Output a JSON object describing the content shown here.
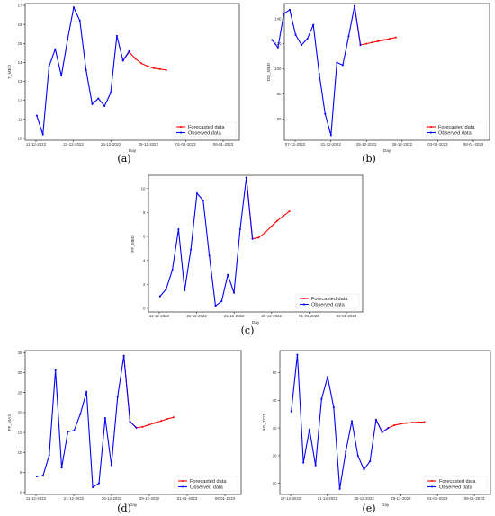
{
  "colors": {
    "observed": "#0000ff",
    "forecast": "#ff0000",
    "frame": "#222222",
    "background": "#ffffff"
  },
  "chart_data": [
    {
      "type": "line",
      "panel": "(a)",
      "xlabel": "Day",
      "ylabel": "T_MED",
      "ylim": [
        9.9,
        17.1
      ],
      "yticks": [
        10,
        11,
        12,
        13,
        14,
        15,
        16,
        17
      ],
      "xlim": [
        "2022-12-10",
        "2023-01-12"
      ],
      "xticks": [
        "11-12-2022",
        "21-12-2022",
        "26-12-2022",
        "29-12-2022",
        "01-01-2023",
        "06-01-2023"
      ],
      "legend_position": "lower-right",
      "series": [
        {
          "name": "Observed data",
          "color": "#0000ff",
          "x": [
            "11-12-2022",
            "12-12-2022",
            "13-12-2022",
            "14-12-2022",
            "15-12-2022",
            "16-12-2022",
            "17-12-2022",
            "18-12-2022",
            "19-12-2022",
            "20-12-2022",
            "21-12-2022",
            "22-12-2022",
            "23-12-2022",
            "24-12-2022",
            "25-12-2022",
            "26-12-2022"
          ],
          "y": [
            11.2,
            10.2,
            13.8,
            14.7,
            13.3,
            15.2,
            16.9,
            16.2,
            13.6,
            11.8,
            12.1,
            11.7,
            12.4,
            15.4,
            14.1,
            14.6
          ]
        },
        {
          "name": "Forecasted data",
          "color": "#ff0000",
          "x": [
            "25-12-2022",
            "26-12-2022",
            "27-12-2022",
            "28-12-2022",
            "29-12-2022",
            "30-12-2022",
            "31-12-2022",
            "01-01-2023"
          ],
          "y": [
            14.1,
            14.55,
            14.2,
            13.95,
            13.8,
            13.7,
            13.65,
            13.6
          ]
        }
      ]
    },
    {
      "type": "line",
      "panel": "(b)",
      "xlabel": "Day",
      "ylabel": "DD_MED",
      "ylim": [
        43,
        152
      ],
      "yticks": [
        60,
        80,
        100,
        120,
        140
      ],
      "xlim": [
        "2022-12-10",
        "2023-01-12"
      ],
      "xticks": [
        "07-12-2022",
        "21-12-2022",
        "25-12-2022",
        "28-12-2022",
        "03-01-2023",
        "08-01-2023"
      ],
      "legend_position": "lower-right",
      "series": [
        {
          "name": "Observed data",
          "color": "#0000ff",
          "x": [
            "07-12-2022",
            "08-12-2022",
            "09-12-2022",
            "10-12-2022",
            "11-12-2022",
            "12-12-2022",
            "13-12-2022",
            "14-12-2022",
            "15-12-2022",
            "16-12-2022",
            "17-12-2022",
            "18-12-2022",
            "19-12-2022",
            "20-12-2022",
            "21-12-2022",
            "22-12-2022"
          ],
          "y": [
            123,
            117,
            144,
            147,
            127,
            119,
            124,
            135,
            96,
            64,
            47,
            105,
            103,
            126,
            150,
            119
          ]
        },
        {
          "name": "Forecasted data",
          "color": "#ff0000",
          "x": [
            "21-12-2022",
            "22-12-2022",
            "23-12-2022",
            "24-12-2022",
            "25-12-2022",
            "26-12-2022",
            "27-12-2022",
            "28-12-2022"
          ],
          "y": [
            150,
            119,
            120,
            121,
            122,
            123,
            124,
            125
          ]
        }
      ]
    },
    {
      "type": "line",
      "panel": "(c)",
      "xlabel": "Day",
      "ylabel": "FF_MED",
      "ylim": [
        -0.3,
        11.1
      ],
      "yticks": [
        0,
        2,
        4,
        6,
        8,
        10
      ],
      "xlim": [
        "2022-12-10",
        "2023-01-12"
      ],
      "xticks": [
        "11-12-2022",
        "21-12-2022",
        "25-12-2022",
        "29-12-2022",
        "01-01-2023",
        "06-01-2023"
      ],
      "legend_position": "lower-right",
      "series": [
        {
          "name": "Observed data",
          "color": "#0000ff",
          "x": [
            "11-12-2022",
            "12-12-2022",
            "13-12-2022",
            "14-12-2022",
            "15-12-2022",
            "16-12-2022",
            "17-12-2022",
            "18-12-2022",
            "19-12-2022",
            "20-12-2022",
            "21-12-2022",
            "22-12-2022",
            "23-12-2022",
            "24-12-2022",
            "25-12-2022",
            "26-12-2022"
          ],
          "y": [
            1.0,
            1.6,
            3.2,
            6.6,
            1.5,
            4.9,
            9.6,
            9.0,
            4.4,
            0.2,
            0.6,
            2.8,
            1.3,
            6.6,
            10.9,
            5.8
          ]
        },
        {
          "name": "Forecasted data",
          "color": "#ff0000",
          "x": [
            "25-12-2022",
            "26-12-2022",
            "27-12-2022",
            "28-12-2022",
            "29-12-2022",
            "30-12-2022",
            "31-12-2022",
            "01-01-2023"
          ],
          "y": [
            10.9,
            5.8,
            5.9,
            6.3,
            6.8,
            7.3,
            7.7,
            8.1
          ]
        }
      ]
    },
    {
      "type": "line",
      "panel": "(d)",
      "xlabel": "Day",
      "ylabel": "FF_MAX",
      "ylim": [
        -0.5,
        35.5
      ],
      "yticks": [
        0,
        5,
        10,
        15,
        20,
        25,
        30,
        35
      ],
      "xlim": [
        "2022-12-10",
        "2023-01-12"
      ],
      "xticks": [
        "11-12-2022",
        "21-12-2022",
        "26-12-2022",
        "29-12-2022",
        "01-01-2023",
        "06-01-2023"
      ],
      "legend_position": "lower-right",
      "series": [
        {
          "name": "Observed data",
          "color": "#0000ff",
          "x": [
            "11-12-2022",
            "12-12-2022",
            "13-12-2022",
            "14-12-2022",
            "15-12-2022",
            "16-12-2022",
            "17-12-2022",
            "18-12-2022",
            "19-12-2022",
            "20-12-2022",
            "21-12-2022",
            "22-12-2022",
            "23-12-2022",
            "24-12-2022",
            "25-12-2022",
            "26-12-2022",
            "27-12-2022"
          ],
          "y": [
            4.0,
            4.2,
            9.3,
            30.6,
            6.2,
            15.2,
            15.5,
            19.6,
            25.2,
            1.3,
            2.3,
            18.6,
            6.8,
            23.9,
            34.2,
            17.7,
            16.2
          ]
        },
        {
          "name": "Forecasted data",
          "color": "#ff0000",
          "x": [
            "25-12-2022",
            "26-12-2022",
            "27-12-2022",
            "28-12-2022",
            "29-12-2022",
            "30-12-2022",
            "31-12-2022",
            "01-01-2023",
            "02-01-2023"
          ],
          "y": [
            34.2,
            17.7,
            16.2,
            16.4,
            16.9,
            17.4,
            17.9,
            18.4,
            18.8
          ]
        }
      ]
    },
    {
      "type": "line",
      "panel": "(e)",
      "xlabel": "Day",
      "ylabel": "RG_TOT",
      "ylim": [
        6,
        58
      ],
      "yticks": [
        10,
        20,
        30,
        40,
        50
      ],
      "xlim": [
        "2022-12-10",
        "2023-01-12"
      ],
      "xticks": [
        "17-12-2022",
        "21-12-2022",
        "25-12-2022",
        "28-12-2022",
        "01-01-2023",
        "06-01-2023"
      ],
      "legend_position": "lower-right",
      "series": [
        {
          "name": "Observed data",
          "color": "#0000ff",
          "x": [
            "11-12-2022",
            "12-12-2022",
            "13-12-2022",
            "14-12-2022",
            "15-12-2022",
            "16-12-2022",
            "17-12-2022",
            "18-12-2022",
            "19-12-2022",
            "20-12-2022",
            "21-12-2022",
            "22-12-2022",
            "23-12-2022",
            "24-12-2022",
            "25-12-2022",
            "26-12-2022",
            "27-12-2022"
          ],
          "y": [
            36,
            56.5,
            17.5,
            29.5,
            16.5,
            40.5,
            48.5,
            37.5,
            8.0,
            21.5,
            32.5,
            20.0,
            15.0,
            18.0,
            33.0,
            28.5,
            30.0
          ]
        },
        {
          "name": "Forecasted data",
          "color": "#ff0000",
          "x": [
            "25-12-2022",
            "26-12-2022",
            "27-12-2022",
            "28-12-2022",
            "29-12-2022",
            "30-12-2022",
            "31-12-2022",
            "01-01-2023",
            "02-01-2023"
          ],
          "y": [
            33.0,
            28.5,
            30.0,
            31.0,
            31.5,
            31.8,
            32.0,
            32.1,
            32.2
          ]
        }
      ]
    }
  ]
}
